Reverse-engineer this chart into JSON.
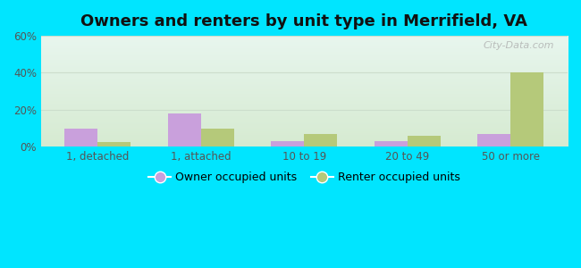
{
  "title": "Owners and renters by unit type in Merrifield, VA",
  "categories": [
    "1, detached",
    "1, attached",
    "10 to 19",
    "20 to 49",
    "50 or more"
  ],
  "owner_values": [
    10,
    18,
    3,
    3,
    7
  ],
  "renter_values": [
    2.5,
    10,
    7,
    6,
    40
  ],
  "owner_color": "#c9a0dc",
  "renter_color": "#b5c97a",
  "background_outer": "#00e5ff",
  "ylim": [
    0,
    60
  ],
  "yticks": [
    0,
    20,
    40,
    60
  ],
  "ytick_labels": [
    "0%",
    "20%",
    "40%",
    "60%"
  ],
  "bar_width": 0.32,
  "title_fontsize": 13,
  "legend_labels": [
    "Owner occupied units",
    "Renter occupied units"
  ],
  "watermark": "City-Data.com",
  "grid_color": "#ccddcc",
  "tick_color": "#555555"
}
